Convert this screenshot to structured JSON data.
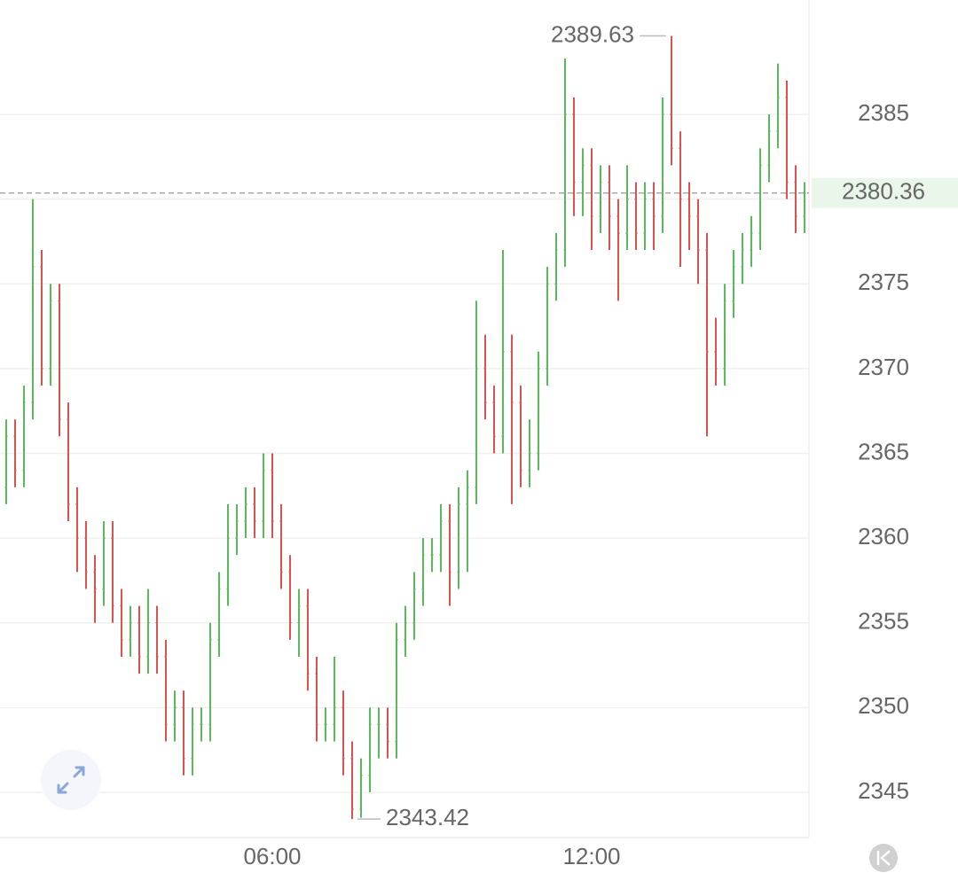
{
  "chart_data": {
    "type": "ohlc",
    "x": [
      60,
      70,
      80,
      90,
      100,
      110,
      120,
      130,
      140,
      150,
      160,
      170,
      180,
      190,
      200,
      210,
      220,
      230,
      240,
      250,
      260,
      270,
      280,
      290,
      300,
      310,
      320,
      330,
      340,
      350,
      360,
      370,
      380,
      390,
      400,
      410,
      420,
      430,
      440,
      450,
      460,
      470,
      480,
      490,
      500,
      510,
      520,
      530,
      540,
      550,
      560,
      570,
      580,
      590,
      600,
      610,
      620,
      630,
      640,
      650,
      660,
      670,
      680,
      690,
      700,
      710,
      720,
      730,
      740,
      750,
      760,
      770,
      780,
      790,
      800,
      810,
      820,
      830,
      840,
      850,
      860,
      870,
      880,
      890,
      900,
      910,
      920,
      930,
      940,
      950,
      960
    ],
    "open": [
      2363,
      2366,
      2364,
      2368,
      2376,
      2370,
      2374,
      2367,
      2362,
      2360,
      2358,
      2357,
      2360,
      2356,
      2354,
      2355,
      2353,
      2355,
      2353,
      2349,
      2350,
      2347,
      2349,
      2349,
      2354,
      2357,
      2360,
      2361,
      2362,
      2361,
      2364,
      2361,
      2358,
      2355,
      2356,
      2352,
      2349,
      2349,
      2350,
      2347,
      2344,
      2346,
      2349,
      2349,
      2348,
      2354,
      2355,
      2357,
      2359,
      2359,
      2361,
      2358,
      2362,
      2363,
      2370,
      2368,
      2366,
      2371,
      2368,
      2364,
      2365,
      2370,
      2375,
      2377,
      2385,
      2381,
      2382,
      2379,
      2381,
      2379,
      2378,
      2380,
      2378,
      2380,
      2379,
      2385,
      2383,
      2380,
      2379,
      2377,
      2371,
      2370,
      2374,
      2376,
      2377,
      2378,
      2382,
      2384,
      2386,
      2381,
      2379
    ],
    "high": [
      2367,
      2367,
      2369,
      2380,
      2377,
      2375,
      2375,
      2368,
      2363,
      2361,
      2359,
      2361,
      2361,
      2357,
      2356,
      2356,
      2357,
      2356,
      2354,
      2351,
      2351,
      2350,
      2350,
      2355,
      2358,
      2362,
      2362,
      2363,
      2363,
      2365,
      2365,
      2362,
      2359,
      2357,
      2357,
      2353,
      2350,
      2353,
      2351,
      2348,
      2347,
      2350,
      2350,
      2350,
      2355,
      2356,
      2358,
      2360,
      2360,
      2362,
      2362,
      2363,
      2364,
      2374,
      2372,
      2369,
      2377,
      2372,
      2369,
      2367,
      2371,
      2376,
      2378,
      2388.3,
      2386,
      2383,
      2383,
      2382,
      2382,
      2380,
      2382,
      2381,
      2381,
      2381,
      2386,
      2389.63,
      2384,
      2381,
      2380,
      2378,
      2373,
      2375,
      2377,
      2378,
      2379,
      2383,
      2385,
      2388,
      2387,
      2382,
      2381
    ],
    "low": [
      2362,
      2363,
      2363,
      2367,
      2369,
      2369,
      2366,
      2361,
      2358,
      2357,
      2355,
      2356,
      2355,
      2353,
      2353,
      2352,
      2352,
      2352,
      2348,
      2348,
      2346,
      2346,
      2348,
      2348,
      2353,
      2356,
      2359,
      2360,
      2360,
      2360,
      2360,
      2357,
      2354,
      2353,
      2351,
      2348,
      2348,
      2348,
      2346,
      2343.42,
      2343.5,
      2345,
      2347,
      2347,
      2347,
      2353,
      2354,
      2356,
      2358,
      2358,
      2356,
      2357,
      2358,
      2362,
      2367,
      2365,
      2365,
      2362,
      2363,
      2363,
      2364,
      2369,
      2374,
      2376,
      2379,
      2379,
      2377,
      2378,
      2377,
      2374,
      2377,
      2377,
      2377,
      2377,
      2378,
      2382,
      2376,
      2377,
      2375,
      2366,
      2369,
      2369,
      2373,
      2375,
      2376,
      2377,
      2381,
      2383,
      2380,
      2378,
      2378
    ],
    "close": [
      2366,
      2364,
      2368,
      2376,
      2370,
      2374,
      2367,
      2362,
      2360,
      2358,
      2357,
      2360,
      2356,
      2354,
      2355,
      2353,
      2355,
      2353,
      2349,
      2350,
      2347,
      2349,
      2349,
      2354,
      2357,
      2360,
      2361,
      2362,
      2361,
      2364,
      2361,
      2358,
      2355,
      2356,
      2352,
      2349,
      2349,
      2350,
      2347,
      2344,
      2346,
      2349,
      2349,
      2348,
      2354,
      2355,
      2357,
      2359,
      2359,
      2361,
      2358,
      2362,
      2363,
      2370,
      2368,
      2366,
      2371,
      2368,
      2364,
      2365,
      2370,
      2375,
      2377,
      2385,
      2381,
      2382,
      2379,
      2381,
      2379,
      2378,
      2380,
      2378,
      2380,
      2379,
      2385,
      2383,
      2380,
      2379,
      2377,
      2371,
      2370,
      2374,
      2376,
      2377,
      2378,
      2382,
      2384,
      2386,
      2381,
      2379,
      2380.36
    ],
    "up_color": "#5cb85c",
    "down_color": "#d9534f",
    "xlim": [
      53,
      965
    ],
    "xticks": [
      {
        "value": 360,
        "label": "06:00"
      },
      {
        "value": 720,
        "label": "12:00"
      }
    ],
    "ylim": [
      2342.33,
      2391.75
    ],
    "yticks": [
      2345,
      2350,
      2355,
      2360,
      2365,
      2370,
      2375,
      2380,
      2385
    ],
    "grid": true
  }
}
